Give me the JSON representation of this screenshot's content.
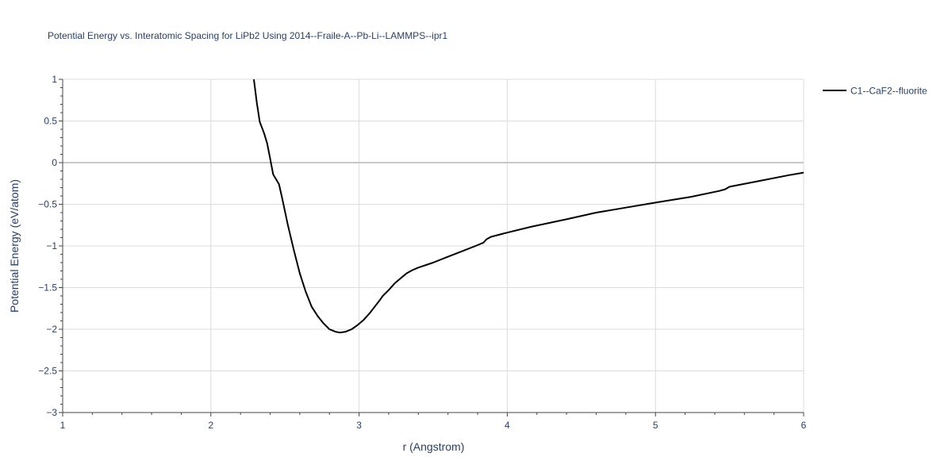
{
  "chart_data": {
    "type": "line",
    "title": "Potential Energy vs. Interatomic Spacing for LiPb2 Using 2014--Fraile-A--Pb-Li--LAMMPS--ipr1",
    "xlabel": "r (Angstrom)",
    "ylabel": "Potential Energy (eV/atom)",
    "xlim": [
      1,
      6
    ],
    "ylim": [
      -3,
      1
    ],
    "x_ticks": [
      1,
      2,
      3,
      4,
      5,
      6
    ],
    "y_ticks": [
      1,
      0.5,
      0,
      -0.5,
      -1,
      -1.5,
      -2,
      -2.5,
      -3
    ],
    "x_tick_labels": [
      "1",
      "2",
      "3",
      "4",
      "5",
      "6"
    ],
    "y_tick_labels": [
      "1",
      "0.5",
      "0",
      "−0.5",
      "−1",
      "−1.5",
      "−2",
      "−2.5",
      "−3"
    ],
    "grid": true,
    "legend_position": "top-right",
    "series": [
      {
        "name": "C1--CaF2--fluorite",
        "color": "#000000",
        "x": [
          2.29,
          2.31,
          2.33,
          2.36,
          2.38,
          2.4,
          2.42,
          2.46,
          2.48,
          2.52,
          2.56,
          2.6,
          2.64,
          2.68,
          2.72,
          2.76,
          2.8,
          2.84,
          2.87,
          2.91,
          2.95,
          2.99,
          3.03,
          3.07,
          3.11,
          3.14,
          3.16,
          3.2,
          3.24,
          3.28,
          3.32,
          3.36,
          3.4,
          3.5,
          3.6,
          3.7,
          3.8,
          3.84,
          3.86,
          3.89,
          4.0,
          4.16,
          4.4,
          4.6,
          4.8,
          5.0,
          5.24,
          5.43,
          5.47,
          5.5,
          5.7,
          5.9,
          6.0
        ],
        "y": [
          1.0,
          0.72,
          0.49,
          0.35,
          0.23,
          0.05,
          -0.14,
          -0.26,
          -0.42,
          -0.75,
          -1.05,
          -1.33,
          -1.55,
          -1.73,
          -1.84,
          -1.93,
          -2.0,
          -2.03,
          -2.04,
          -2.03,
          -2.0,
          -1.95,
          -1.89,
          -1.81,
          -1.72,
          -1.65,
          -1.6,
          -1.53,
          -1.45,
          -1.39,
          -1.33,
          -1.29,
          -1.26,
          -1.2,
          -1.13,
          -1.06,
          -0.99,
          -0.96,
          -0.92,
          -0.89,
          -0.84,
          -0.77,
          -0.68,
          -0.6,
          -0.54,
          -0.48,
          -0.41,
          -0.34,
          -0.32,
          -0.29,
          -0.22,
          -0.15,
          -0.12
        ]
      }
    ]
  }
}
